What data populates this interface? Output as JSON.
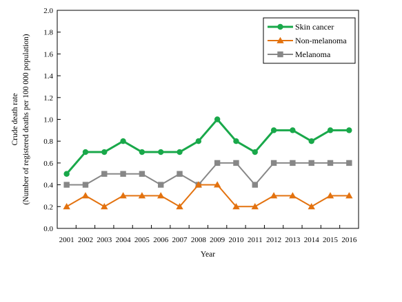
{
  "chart_data": {
    "type": "line",
    "title": "",
    "xlabel": "Year",
    "ylabel_lines": [
      "Crude death rate",
      "(Number of registered deaths per 100 000 population)"
    ],
    "ylim": [
      0,
      2.0
    ],
    "y_ticks": [
      "0.0",
      "0.2",
      "0.4",
      "0.6",
      "0.8",
      "1.0",
      "1.2",
      "1.4",
      "1.6",
      "1.8",
      "2.0"
    ],
    "categories": [
      "2001",
      "2002",
      "2003",
      "2004",
      "2005",
      "2006",
      "2007",
      "2008",
      "2009",
      "2010",
      "2011",
      "2012",
      "2013",
      "2014",
      "2015",
      "2016"
    ],
    "grid": false,
    "legend_position": "top-right",
    "series": [
      {
        "name": "Skin cancer",
        "color": "#19a84a",
        "marker": "circle",
        "values": [
          0.5,
          0.7,
          0.7,
          0.8,
          0.7,
          0.7,
          0.7,
          0.8,
          1.0,
          0.8,
          0.7,
          0.9,
          0.9,
          0.8,
          0.9,
          0.9
        ]
      },
      {
        "name": "Non-melanoma",
        "color": "#e3720f",
        "marker": "triangle",
        "values": [
          0.2,
          0.3,
          0.2,
          0.3,
          0.3,
          0.3,
          0.2,
          0.4,
          0.4,
          0.2,
          0.2,
          0.3,
          0.3,
          0.2,
          0.3,
          0.3
        ]
      },
      {
        "name": "Melanoma",
        "color": "#878787",
        "marker": "square",
        "values": [
          0.4,
          0.4,
          0.5,
          0.5,
          0.5,
          0.4,
          0.5,
          0.4,
          0.6,
          0.6,
          0.4,
          0.6,
          0.6,
          0.6,
          0.6,
          0.6
        ]
      }
    ]
  }
}
